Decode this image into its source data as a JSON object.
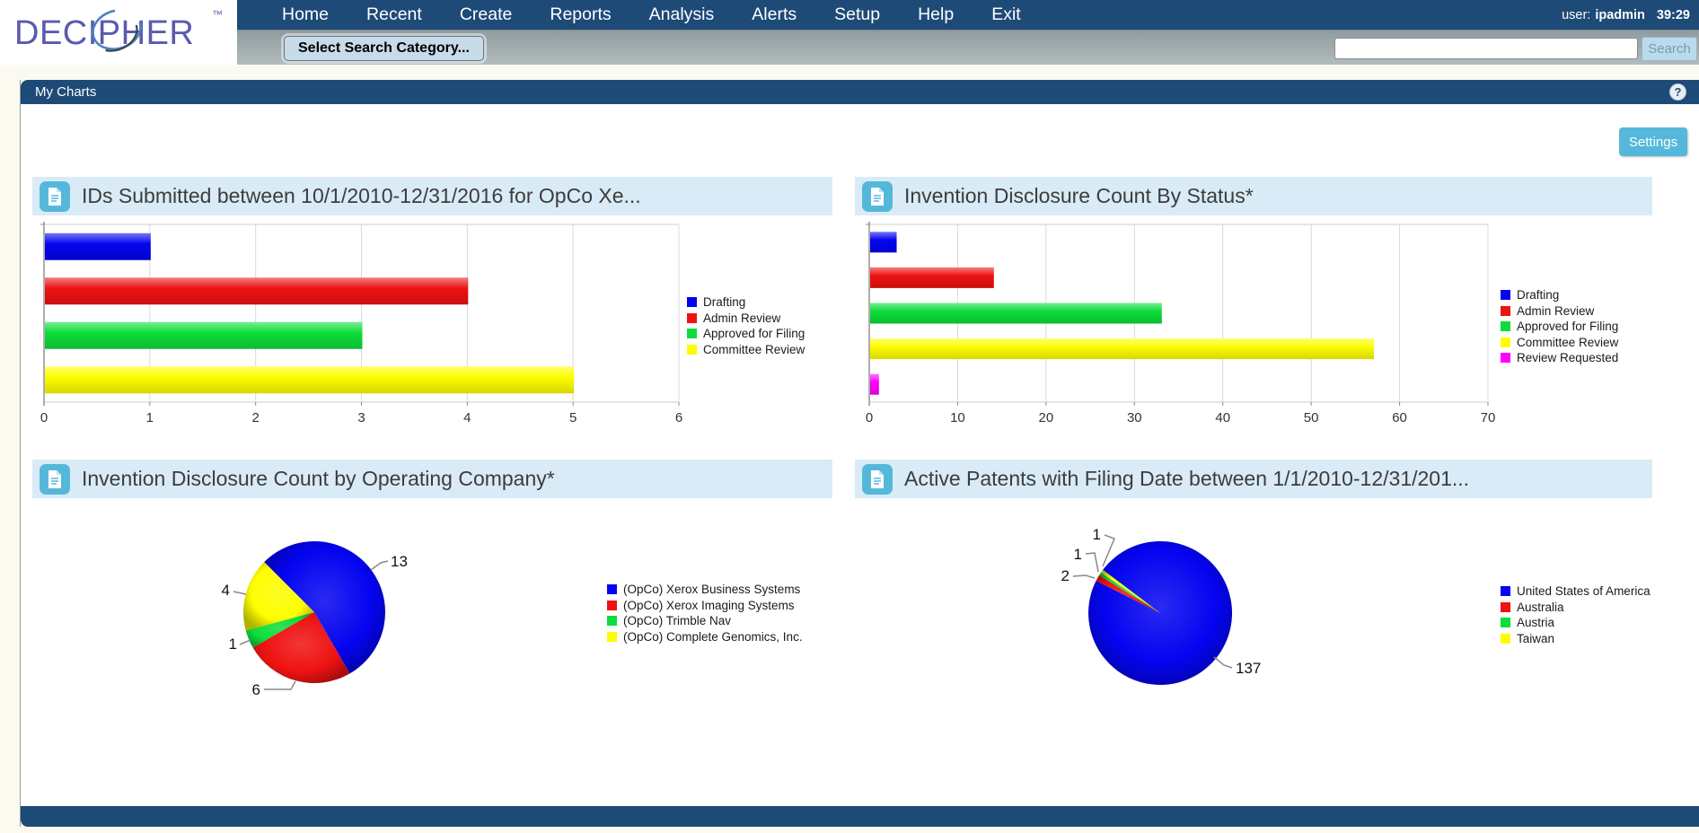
{
  "header": {
    "logo_text": "DECIPHER",
    "logo_tm": "™",
    "nav_items": [
      "Home",
      "Recent",
      "Create",
      "Reports",
      "Analysis",
      "Alerts",
      "Setup",
      "Help",
      "Exit"
    ],
    "user_label": "user:",
    "user_name": "ipadmin",
    "session_timer": "39:29",
    "search_category_button": "Select Search Category...",
    "search_input_value": "",
    "search_button": "Search"
  },
  "panel": {
    "title": "My Charts",
    "help_icon": "?",
    "settings_button": "Settings"
  },
  "colors": {
    "navy": "#1e4a77",
    "accent_blue": "#55b8da",
    "title_bar_bg": "#d9ebf7",
    "series_blue": "#0404f0",
    "series_red": "#ee1212",
    "series_green": "#0ddd3a",
    "series_yellow": "#fdfd00",
    "series_magenta": "#ff00ff"
  },
  "chart_data": [
    {
      "type": "bar",
      "title": "IDs Submitted between 10/1/2010-12/31/2016 for OpCo Xe...",
      "categories": [
        "Drafting",
        "Admin Review",
        "Approved for Filing",
        "Committee Review"
      ],
      "values": [
        1,
        4,
        3,
        5
      ],
      "colors": [
        "#0404f0",
        "#ee1212",
        "#0ddd3a",
        "#fdfd00"
      ],
      "xlim": [
        0,
        6
      ],
      "xtick_step": 1,
      "grid": true,
      "legend_position": "right"
    },
    {
      "type": "bar",
      "title": "Invention Disclosure Count By Status*",
      "categories": [
        "Drafting",
        "Admin Review",
        "Approved for Filing",
        "Committee Review",
        "Review Requested"
      ],
      "values": [
        3,
        14,
        33,
        57,
        1
      ],
      "colors": [
        "#0404f0",
        "#ee1212",
        "#0ddd3a",
        "#fdfd00",
        "#ff00ff"
      ],
      "xlim": [
        0,
        70
      ],
      "xtick_step": 10,
      "grid": true,
      "legend_position": "right"
    },
    {
      "type": "pie",
      "title": "Invention Disclosure Count by Operating Company*",
      "categories": [
        "(OpCo) Xerox Business Systems",
        "(OpCo) Xerox Imaging Systems",
        "(OpCo) Trimble Nav",
        "(OpCo) Complete Genomics, Inc."
      ],
      "values": [
        13,
        6,
        1,
        4
      ],
      "colors": [
        "#0404f0",
        "#ee1212",
        "#0ddd3a",
        "#fdfd00"
      ],
      "start_angle": 135,
      "data_labels": true,
      "legend_position": "right"
    },
    {
      "type": "pie",
      "title": "Active Patents with Filing Date between 1/1/2010-12/31/201...",
      "categories": [
        "United States of America",
        "Australia",
        "Austria",
        "Taiwan"
      ],
      "values": [
        137,
        2,
        1,
        1
      ],
      "colors": [
        "#0404f0",
        "#ee1212",
        "#0ddd3a",
        "#fdfd00"
      ],
      "start_angle": 143,
      "data_labels": true,
      "legend_position": "right"
    }
  ]
}
